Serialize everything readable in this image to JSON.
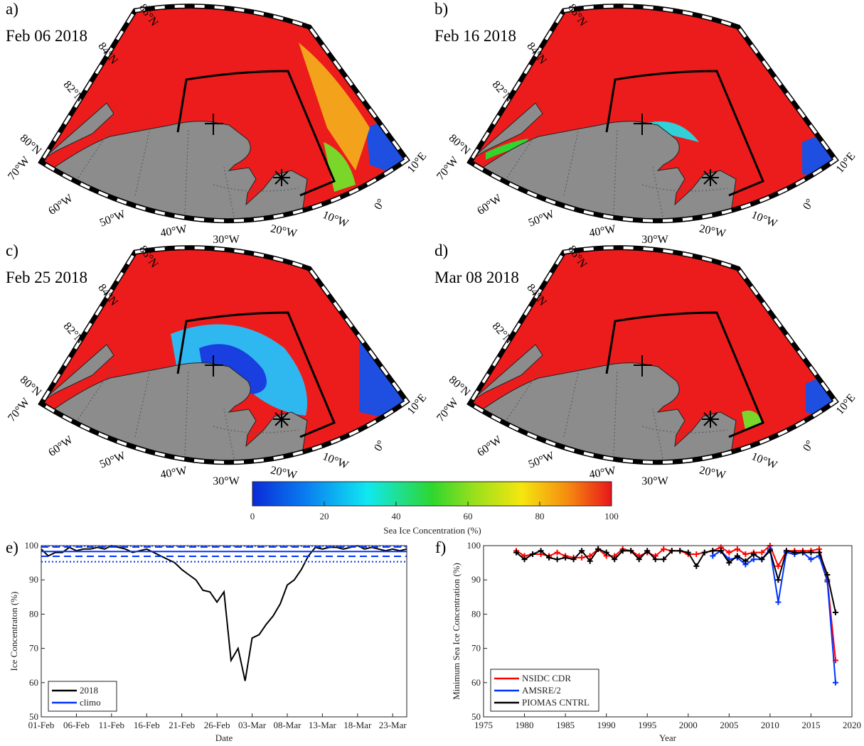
{
  "panels": [
    {
      "label": "a)",
      "date": "Feb 06 2018"
    },
    {
      "label": "b)",
      "date": "Feb 16 2018"
    },
    {
      "label": "c)",
      "date": "Feb 25 2018"
    },
    {
      "label": "d)",
      "date": "Mar 08 2018"
    }
  ],
  "map": {
    "lat_labels": [
      "86°N",
      "84°N",
      "82°N",
      "80°N"
    ],
    "lon_labels": [
      "70°W",
      "60°W",
      "50°W",
      "40°W",
      "30°W",
      "20°W",
      "10°W",
      "0°",
      "10°E"
    ]
  },
  "colorbar": {
    "label": "Sea Ice Concentration (%)",
    "xlim": [
      0,
      100
    ],
    "xticks": [
      0,
      20,
      40,
      60,
      80,
      100
    ]
  },
  "chart_data": [
    {
      "type": "line",
      "label": "e)",
      "xlabel": "Date",
      "ylabel": "Ice Concentraton (%)",
      "ylim": [
        50,
        100
      ],
      "yticks": [
        50,
        60,
        70,
        80,
        90,
        100
      ],
      "legend": "lower left",
      "categories": [
        "01-Feb",
        null,
        null,
        null,
        null,
        "06-Feb",
        null,
        null,
        null,
        null,
        "11-Feb",
        null,
        null,
        null,
        null,
        "16-Feb",
        null,
        null,
        null,
        null,
        "21-Feb",
        null,
        null,
        null,
        null,
        "26-Feb",
        null,
        null,
        null,
        null,
        "03-Mar",
        null,
        null,
        null,
        null,
        "08-Mar",
        null,
        null,
        null,
        null,
        "13-Mar",
        null,
        null,
        null,
        null,
        "18-Mar",
        null,
        null,
        null,
        null,
        "23-Mar",
        null,
        null
      ],
      "series": [
        {
          "name": "2018",
          "color": "#000000",
          "values": [
            99,
            97,
            98,
            98,
            99.5,
            98.5,
            99,
            99,
            99.5,
            99,
            100,
            99.5,
            99,
            98,
            98.5,
            99,
            98,
            97,
            96,
            95,
            93,
            91.5,
            90,
            87,
            86.5,
            83.5,
            86.5,
            66.5,
            70,
            60.5,
            73,
            74,
            77,
            79.5,
            83,
            88.5,
            90,
            93,
            97,
            99.5,
            99,
            99.5,
            99.5,
            99,
            99.5,
            100,
            99,
            99.5,
            99,
            98.5,
            99,
            98.5,
            99
          ]
        },
        {
          "name": "climo",
          "color": "#0033ff",
          "hlines": [
            {
              "value": 98.3,
              "style": "solid"
            },
            {
              "value": 96.9,
              "style": "dashed"
            },
            {
              "value": 99.6,
              "style": "dashed"
            },
            {
              "value": 95.3,
              "style": "dotted"
            },
            {
              "value": 99.9,
              "style": "dotted"
            }
          ]
        }
      ]
    },
    {
      "type": "line",
      "label": "f)",
      "xlabel": "Year",
      "ylabel": "Minimum Sea Ice Concentration (%)",
      "xlim": [
        1975,
        2020
      ],
      "xticks": [
        1975,
        1980,
        1985,
        1990,
        1995,
        2000,
        2005,
        2010,
        2015,
        2020
      ],
      "ylim": [
        50,
        100
      ],
      "yticks": [
        50,
        60,
        70,
        80,
        90,
        100
      ],
      "legend": "lower left",
      "marker": "+",
      "series": [
        {
          "name": "NSIDC CDR",
          "color": "#ff0000",
          "x": [
            1979,
            1980,
            1981,
            1982,
            1983,
            1984,
            1985,
            1986,
            1987,
            1988,
            1989,
            1990,
            1991,
            1992,
            1993,
            1994,
            1995,
            1996,
            1997,
            1998,
            1999,
            2000,
            2001,
            2002,
            2003,
            2004,
            2005,
            2006,
            2007,
            2008,
            2009,
            2010,
            2011,
            2012,
            2013,
            2014,
            2015,
            2016,
            2017,
            2018
          ],
          "values": [
            98.5,
            97,
            97.5,
            97.5,
            97,
            98,
            97,
            96.5,
            96.5,
            97,
            99,
            97,
            97,
            99,
            98.5,
            97,
            98,
            97,
            99,
            98.5,
            98.5,
            97.5,
            97.5,
            98,
            98.5,
            99.5,
            98,
            99,
            97.5,
            98,
            98,
            100,
            94,
            98.5,
            98.5,
            98.5,
            98.5,
            99,
            90,
            66.5
          ]
        },
        {
          "name": "AMSRE/2",
          "color": "#0033ff",
          "x": [
            2003,
            2004,
            2005,
            2006,
            2007,
            2008,
            2009,
            2010,
            2011,
            2012,
            2013,
            2014,
            2015,
            2016,
            2017,
            2018
          ],
          "values": [
            97,
            98.5,
            96,
            96.5,
            94.5,
            96,
            96,
            99,
            83.5,
            98,
            97.5,
            98,
            96,
            97,
            89.5,
            60
          ]
        },
        {
          "name": "PIOMAS CNTRL",
          "color": "#000000",
          "x": [
            1979,
            1980,
            1981,
            1982,
            1983,
            1984,
            1985,
            1986,
            1987,
            1988,
            1989,
            1990,
            1991,
            1992,
            1993,
            1994,
            1995,
            1996,
            1997,
            1998,
            1999,
            2000,
            2001,
            2002,
            2003,
            2004,
            2005,
            2006,
            2007,
            2008,
            2009,
            2010,
            2011,
            2012,
            2013,
            2014,
            2015,
            2016,
            2017,
            2018
          ],
          "values": [
            98,
            96,
            97.5,
            98.5,
            96.5,
            96,
            96.5,
            96,
            98.5,
            95.5,
            99,
            98,
            96,
            98.5,
            98.5,
            96,
            98.5,
            96,
            96,
            98.5,
            98.5,
            98,
            94,
            98,
            98.5,
            98.5,
            95,
            97,
            95.5,
            97.5,
            96,
            98.5,
            90,
            98.5,
            98,
            98,
            98,
            98,
            91.5,
            80.5
          ]
        }
      ]
    }
  ]
}
